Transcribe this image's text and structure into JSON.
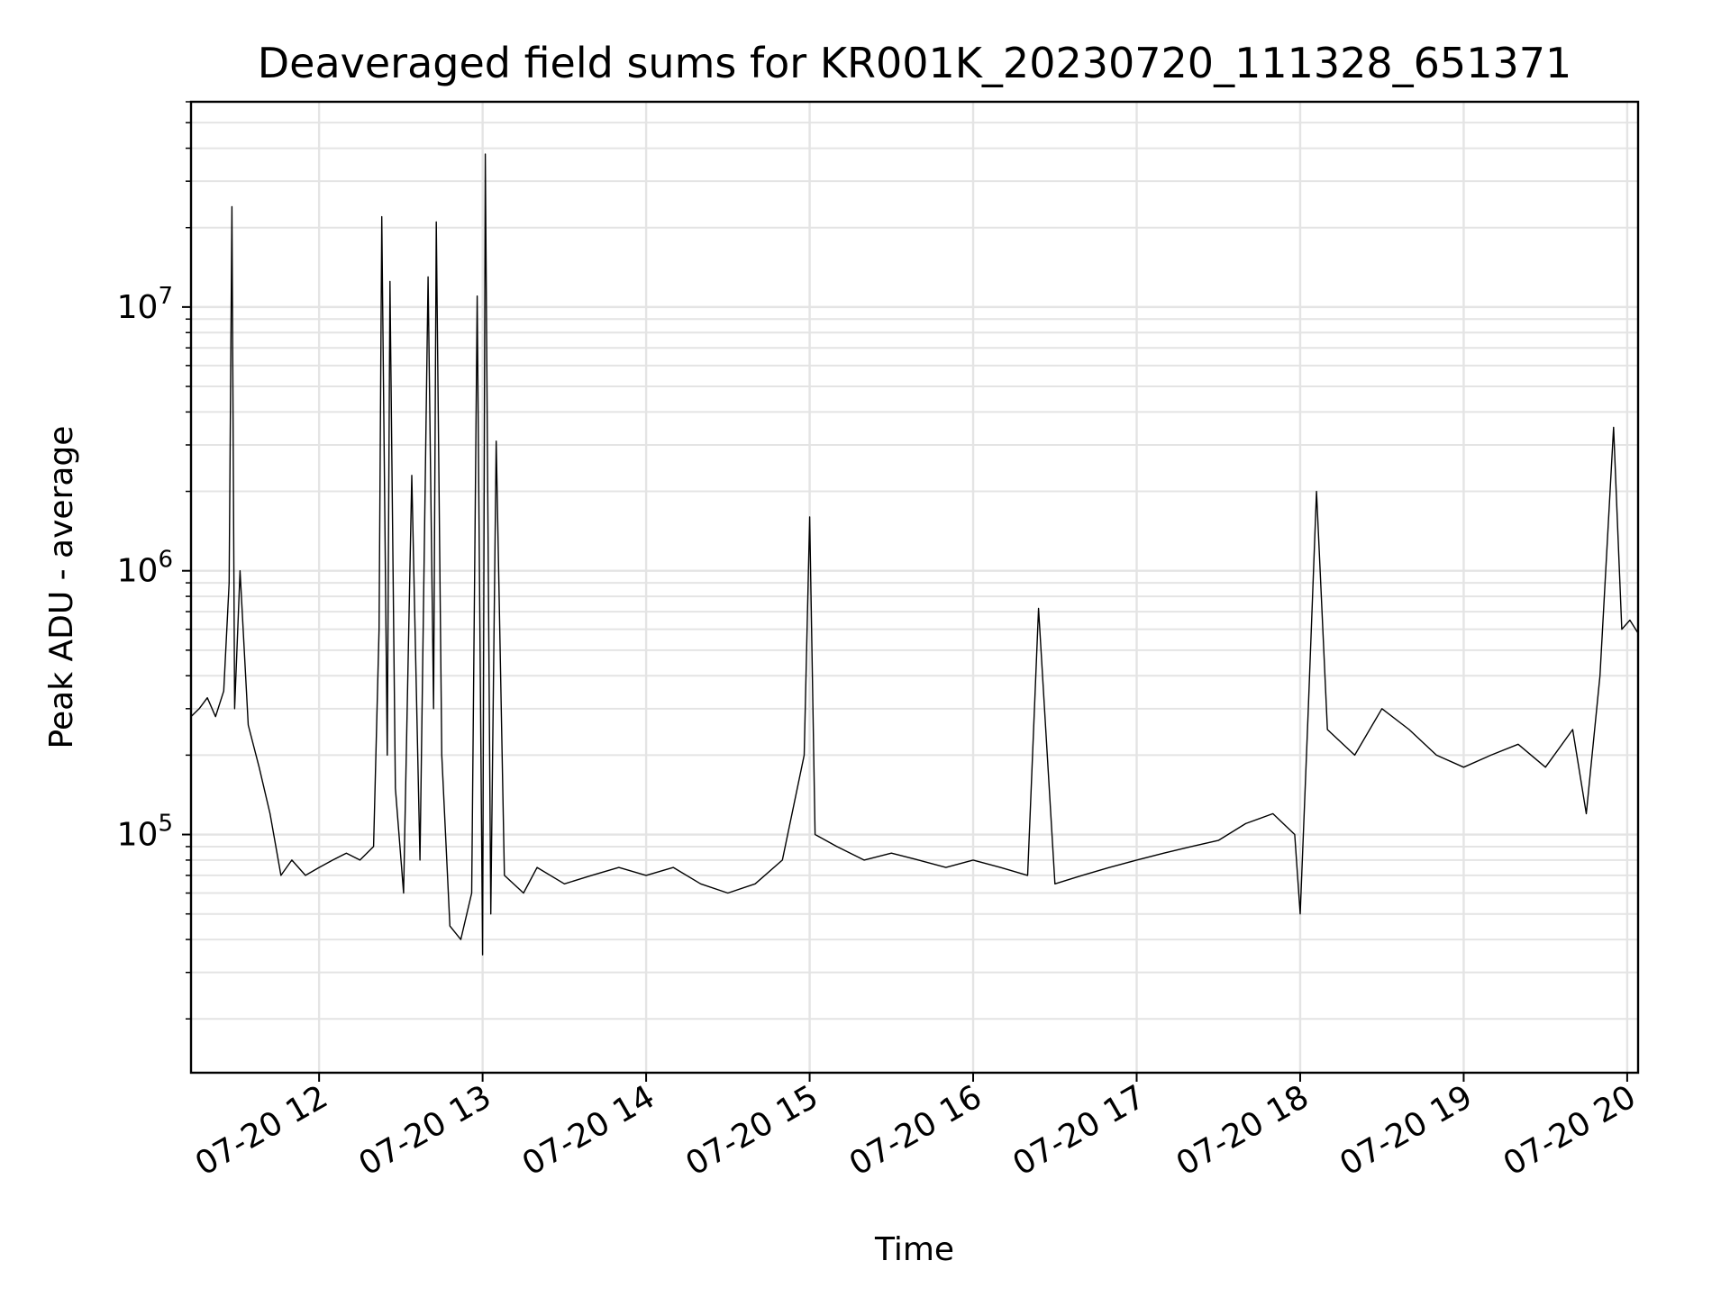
{
  "chart_data": {
    "type": "line",
    "title": "Deaveraged field sums for KR001K_20230720_111328_651371",
    "xlabel": "Time",
    "ylabel": "Peak ADU - average",
    "x_scale": "time",
    "y_scale": "log",
    "xlim": [
      "2023-07-20T11:13",
      "2023-07-20T20:04"
    ],
    "ylim": [
      12500,
      60000000
    ],
    "grid": true,
    "x_ticks": [
      "07-20 12",
      "07-20 13",
      "07-20 14",
      "07-20 15",
      "07-20 16",
      "07-20 17",
      "07-20 18",
      "07-20 19",
      "07-20 20"
    ],
    "y_ticks": [
      {
        "base": "10",
        "exp": "5",
        "value": 100000
      },
      {
        "base": "10",
        "exp": "6",
        "value": 1000000
      },
      {
        "base": "10",
        "exp": "7",
        "value": 10000000
      }
    ],
    "line_color": "#000000",
    "series": [
      {
        "points": [
          [
            "2023-07-20T11:13",
            280000
          ],
          [
            "2023-07-20T11:16",
            300000
          ],
          [
            "2023-07-20T11:19",
            330000
          ],
          [
            "2023-07-20T11:22",
            280000
          ],
          [
            "2023-07-20T11:25",
            350000
          ],
          [
            "2023-07-20T11:27",
            900000
          ],
          [
            "2023-07-20T11:28",
            24000000
          ],
          [
            "2023-07-20T11:29",
            300000
          ],
          [
            "2023-07-20T11:31",
            1000000
          ],
          [
            "2023-07-20T11:34",
            260000
          ],
          [
            "2023-07-20T11:38",
            180000
          ],
          [
            "2023-07-20T11:42",
            120000
          ],
          [
            "2023-07-20T11:46",
            70000
          ],
          [
            "2023-07-20T11:50",
            80000
          ],
          [
            "2023-07-20T11:55",
            70000
          ],
          [
            "2023-07-20T12:00",
            75000
          ],
          [
            "2023-07-20T12:05",
            80000
          ],
          [
            "2023-07-20T12:10",
            85000
          ],
          [
            "2023-07-20T12:15",
            80000
          ],
          [
            "2023-07-20T12:20",
            90000
          ],
          [
            "2023-07-20T12:22",
            600000
          ],
          [
            "2023-07-20T12:23",
            22000000
          ],
          [
            "2023-07-20T12:25",
            200000
          ],
          [
            "2023-07-20T12:26",
            12500000
          ],
          [
            "2023-07-20T12:28",
            150000
          ],
          [
            "2023-07-20T12:31",
            60000
          ],
          [
            "2023-07-20T12:34",
            2300000
          ],
          [
            "2023-07-20T12:37",
            80000
          ],
          [
            "2023-07-20T12:40",
            13000000
          ],
          [
            "2023-07-20T12:42",
            300000
          ],
          [
            "2023-07-20T12:43",
            21000000
          ],
          [
            "2023-07-20T12:45",
            200000
          ],
          [
            "2023-07-20T12:48",
            45000
          ],
          [
            "2023-07-20T12:52",
            40000
          ],
          [
            "2023-07-20T12:56",
            60000
          ],
          [
            "2023-07-20T12:58",
            11000000
          ],
          [
            "2023-07-20T13:00",
            35000
          ],
          [
            "2023-07-20T13:01",
            38000000
          ],
          [
            "2023-07-20T13:03",
            50000
          ],
          [
            "2023-07-20T13:05",
            3100000
          ],
          [
            "2023-07-20T13:08",
            70000
          ],
          [
            "2023-07-20T13:15",
            60000
          ],
          [
            "2023-07-20T13:20",
            75000
          ],
          [
            "2023-07-20T13:30",
            65000
          ],
          [
            "2023-07-20T13:40",
            70000
          ],
          [
            "2023-07-20T13:50",
            75000
          ],
          [
            "2023-07-20T14:00",
            70000
          ],
          [
            "2023-07-20T14:10",
            75000
          ],
          [
            "2023-07-20T14:20",
            65000
          ],
          [
            "2023-07-20T14:30",
            60000
          ],
          [
            "2023-07-20T14:40",
            65000
          ],
          [
            "2023-07-20T14:50",
            80000
          ],
          [
            "2023-07-20T14:58",
            200000
          ],
          [
            "2023-07-20T15:00",
            1600000
          ],
          [
            "2023-07-20T15:02",
            100000
          ],
          [
            "2023-07-20T15:10",
            90000
          ],
          [
            "2023-07-20T15:20",
            80000
          ],
          [
            "2023-07-20T15:30",
            85000
          ],
          [
            "2023-07-20T15:40",
            80000
          ],
          [
            "2023-07-20T15:50",
            75000
          ],
          [
            "2023-07-20T16:00",
            80000
          ],
          [
            "2023-07-20T16:10",
            75000
          ],
          [
            "2023-07-20T16:20",
            70000
          ],
          [
            "2023-07-20T16:24",
            720000
          ],
          [
            "2023-07-20T16:30",
            65000
          ],
          [
            "2023-07-20T16:40",
            70000
          ],
          [
            "2023-07-20T16:50",
            75000
          ],
          [
            "2023-07-20T17:00",
            80000
          ],
          [
            "2023-07-20T17:10",
            85000
          ],
          [
            "2023-07-20T17:20",
            90000
          ],
          [
            "2023-07-20T17:30",
            95000
          ],
          [
            "2023-07-20T17:40",
            110000
          ],
          [
            "2023-07-20T17:50",
            120000
          ],
          [
            "2023-07-20T17:58",
            100000
          ],
          [
            "2023-07-20T18:00",
            50000
          ],
          [
            "2023-07-20T18:03",
            300000
          ],
          [
            "2023-07-20T18:06",
            2000000
          ],
          [
            "2023-07-20T18:10",
            250000
          ],
          [
            "2023-07-20T18:20",
            200000
          ],
          [
            "2023-07-20T18:30",
            300000
          ],
          [
            "2023-07-20T18:40",
            250000
          ],
          [
            "2023-07-20T18:50",
            200000
          ],
          [
            "2023-07-20T19:00",
            180000
          ],
          [
            "2023-07-20T19:10",
            200000
          ],
          [
            "2023-07-20T19:20",
            220000
          ],
          [
            "2023-07-20T19:30",
            180000
          ],
          [
            "2023-07-20T19:40",
            250000
          ],
          [
            "2023-07-20T19:45",
            120000
          ],
          [
            "2023-07-20T19:50",
            400000
          ],
          [
            "2023-07-20T19:55",
            3500000
          ],
          [
            "2023-07-20T19:58",
            600000
          ],
          [
            "2023-07-20T20:01",
            650000
          ],
          [
            "2023-07-20T20:04",
            580000
          ]
        ]
      }
    ]
  }
}
